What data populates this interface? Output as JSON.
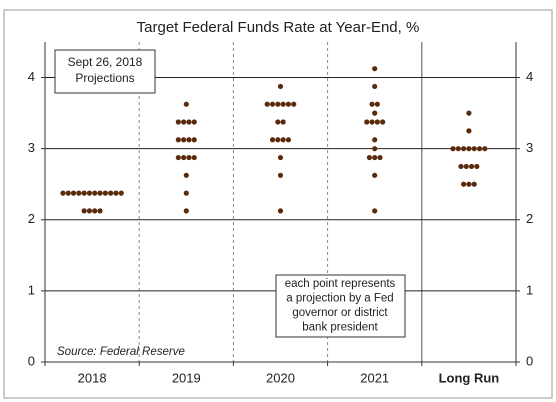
{
  "chart_data": {
    "type": "dot",
    "title": "Target Federal Funds Rate at Year-End, %",
    "categories": [
      "2018",
      "2019",
      "2020",
      "2021",
      "Long Run"
    ],
    "values": [
      [
        2.375,
        2.375,
        2.375,
        2.375,
        2.375,
        2.375,
        2.375,
        2.375,
        2.375,
        2.375,
        2.375,
        2.375,
        2.125,
        2.125,
        2.125,
        2.125
      ],
      [
        3.625,
        3.375,
        3.375,
        3.375,
        3.375,
        3.125,
        3.125,
        3.125,
        3.125,
        2.875,
        2.875,
        2.875,
        2.875,
        2.625,
        2.375,
        2.125
      ],
      [
        3.875,
        3.625,
        3.625,
        3.625,
        3.625,
        3.625,
        3.625,
        3.375,
        3.375,
        3.125,
        3.125,
        3.125,
        3.125,
        2.875,
        2.625,
        2.125
      ],
      [
        4.125,
        3.875,
        3.625,
        3.625,
        3.5,
        3.375,
        3.375,
        3.375,
        3.375,
        3.125,
        3.0,
        2.875,
        2.875,
        2.875,
        2.625,
        2.125
      ],
      [
        3.5,
        3.25,
        3.0,
        3.0,
        3.0,
        3.0,
        3.0,
        3.0,
        3.0,
        2.75,
        2.75,
        2.75,
        2.75,
        2.5,
        2.5,
        2.5
      ]
    ],
    "color": "#5b2a0c",
    "ylim": [
      0,
      4.5
    ],
    "yticks": [
      0,
      1,
      2,
      3,
      4
    ],
    "grid": true,
    "projection_label": [
      "Sept 26, 2018",
      "Projections"
    ],
    "note": [
      "each point represents",
      "a projection by a Fed",
      "governor or district",
      "bank president"
    ],
    "source": "Source: Federal Reserve"
  }
}
